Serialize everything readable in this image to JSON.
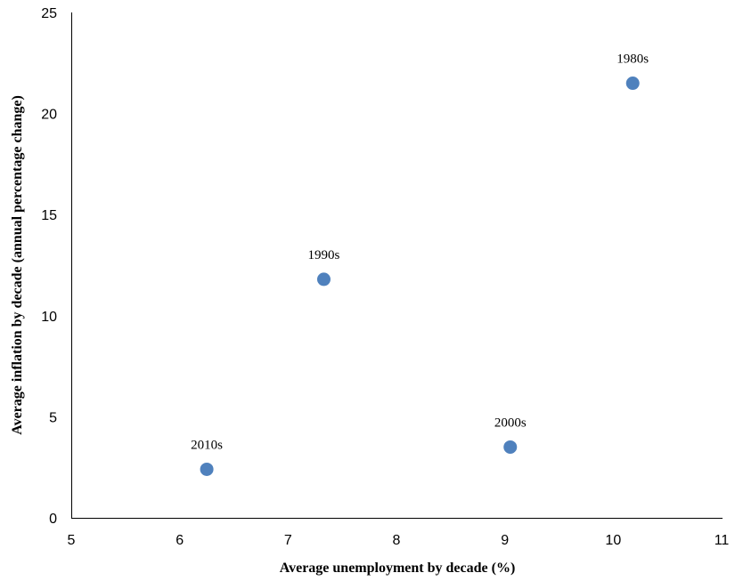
{
  "chart_data": {
    "type": "scatter",
    "title": "",
    "xlabel": "Average unemployment by decade (%)",
    "ylabel": "Average inflation by decade (annual percentage change)",
    "xlim": [
      5,
      11
    ],
    "ylim": [
      0,
      25
    ],
    "xticks": [
      "5",
      "6",
      "7",
      "8",
      "9",
      "10",
      "11"
    ],
    "yticks": [
      "0",
      "5",
      "10",
      "15",
      "20",
      "25"
    ],
    "grid": false,
    "legend": "none",
    "marker_color": "#4F81BD",
    "points": [
      {
        "label": "1980s",
        "x": 10.18,
        "y": 21.5
      },
      {
        "label": "1990s",
        "x": 7.33,
        "y": 11.8
      },
      {
        "label": "2000s",
        "x": 9.05,
        "y": 3.5
      },
      {
        "label": "2010s",
        "x": 6.25,
        "y": 2.4
      }
    ]
  }
}
